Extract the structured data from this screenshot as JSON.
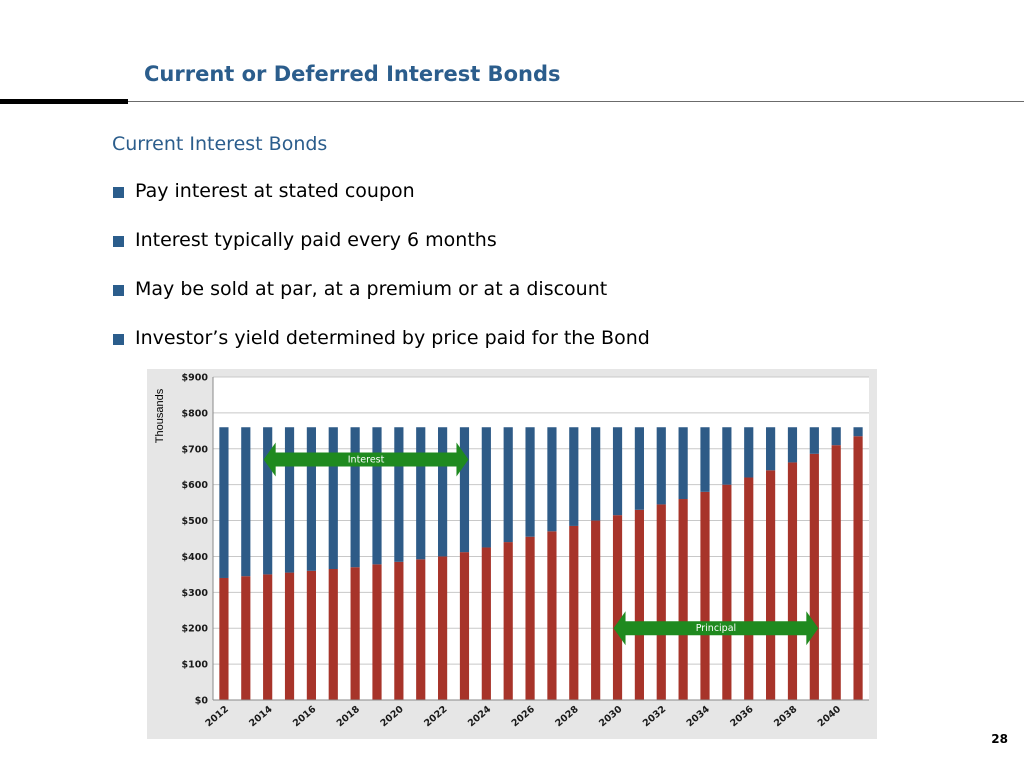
{
  "slide": {
    "title": "Current or Deferred Interest Bonds",
    "subtitle": "Current Interest Bonds",
    "bullets": [
      "Pay interest at stated coupon",
      "Interest typically paid every 6 months",
      "May be sold at par, at a premium or at a discount",
      "Investor’s yield determined by price paid for the Bond"
    ],
    "page_number": "28"
  },
  "colors": {
    "title_blue": "#2b5d8c",
    "principal_red": "#a7342a",
    "interest_blue": "#2e5b87",
    "arrow_green": "#1f8a1f"
  },
  "chart_data": {
    "type": "bar",
    "stacked": true,
    "ylabel": "Thousands",
    "ylim": [
      0,
      900
    ],
    "y_ticks": [
      "$0",
      "$100",
      "$200",
      "$300",
      "$400",
      "$500",
      "$600",
      "$700",
      "$800",
      "$900"
    ],
    "grid": true,
    "x": [
      2012,
      2013,
      2014,
      2015,
      2016,
      2017,
      2018,
      2019,
      2020,
      2021,
      2022,
      2023,
      2024,
      2025,
      2026,
      2027,
      2028,
      2029,
      2030,
      2031,
      2032,
      2033,
      2034,
      2035,
      2036,
      2037,
      2038,
      2039,
      2040,
      2041
    ],
    "x_tick_labels": [
      "2012",
      "2014",
      "2016",
      "2018",
      "2020",
      "2022",
      "2024",
      "2026",
      "2028",
      "2030",
      "2032",
      "2034",
      "2036",
      "2038",
      "2040"
    ],
    "series": [
      {
        "key": "principal",
        "values": [
          340,
          345,
          350,
          355,
          360,
          365,
          370,
          378,
          385,
          392,
          400,
          412,
          425,
          440,
          455,
          470,
          485,
          500,
          515,
          530,
          545,
          560,
          580,
          600,
          620,
          640,
          662,
          686,
          710,
          735
        ]
      },
      {
        "key": "interest",
        "values": [
          420,
          415,
          410,
          405,
          400,
          395,
          390,
          382,
          375,
          368,
          360,
          348,
          335,
          320,
          305,
          290,
          275,
          260,
          245,
          230,
          215,
          200,
          180,
          160,
          140,
          120,
          98,
          74,
          50,
          25
        ]
      }
    ],
    "annotations": [
      {
        "label": "Interest",
        "from_year": 2014,
        "to_year": 2023,
        "y": 670
      },
      {
        "label": "Principal",
        "from_year": 2030,
        "to_year": 2039,
        "y": 200
      }
    ]
  }
}
